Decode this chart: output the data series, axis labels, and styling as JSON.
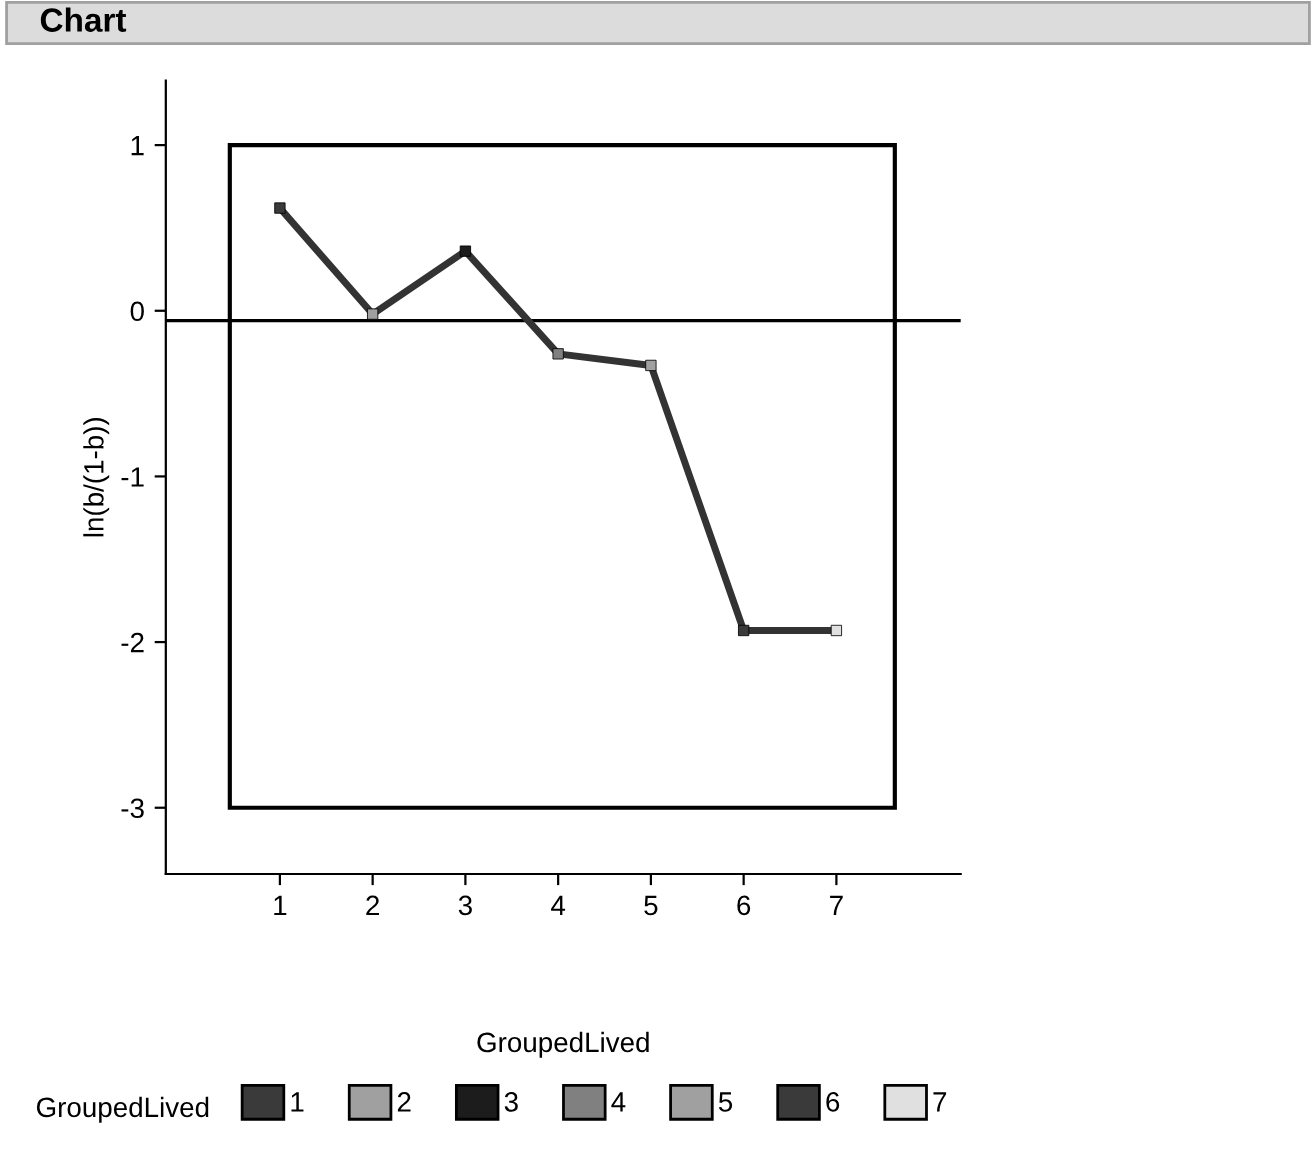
{
  "chart_data": {
    "type": "line",
    "title": "Chart",
    "xlabel": "GroupedLived",
    "ylabel": "ln(b/(1-b))",
    "categories": [
      "1",
      "2",
      "3",
      "4",
      "5",
      "6",
      "7"
    ],
    "series": [
      {
        "color": "#333333",
        "values": [
          0.62,
          -0.02,
          0.36,
          -0.26,
          -0.33,
          -1.93,
          -1.93
        ]
      },
      {
        "type": "scatter",
        "name": "1",
        "marker": "square",
        "color": "#3a3a3a",
        "values": [
          0.62,
          null,
          null,
          null,
          null,
          null,
          null
        ]
      },
      {
        "type": "scatter",
        "name": "2",
        "marker": "square",
        "color": "#a0a0a0",
        "values": [
          null,
          -0.02,
          null,
          null,
          null,
          null,
          null
        ]
      },
      {
        "type": "scatter",
        "name": "3",
        "marker": "square",
        "color": "#1c1c1c",
        "values": [
          null,
          null,
          0.36,
          null,
          null,
          null,
          null
        ]
      },
      {
        "type": "scatter",
        "name": "4",
        "marker": "square",
        "color": "#808080",
        "values": [
          null,
          null,
          null,
          -0.26,
          null,
          null,
          null
        ]
      },
      {
        "type": "scatter",
        "name": "5",
        "marker": "square",
        "color": "#a0a0a0",
        "values": [
          null,
          null,
          null,
          null,
          -0.33,
          null,
          null
        ]
      },
      {
        "type": "scatter",
        "name": "6",
        "marker": "square",
        "color": "#3a3a3a",
        "values": [
          null,
          null,
          null,
          null,
          null,
          -1.93,
          null
        ]
      },
      {
        "type": "scatter",
        "name": "7",
        "marker": "square",
        "color": "#e0e0e0",
        "values": [
          null,
          null,
          null,
          null,
          null,
          null,
          -1.93
        ]
      }
    ],
    "ylim": [
      -3.4,
      1.39
    ],
    "yticks": [
      -3,
      -2,
      -1,
      0,
      1
    ],
    "ref_lines": [
      {
        "axis": "y",
        "value": -0.06,
        "color": "#000000"
      }
    ],
    "legend": "bottom",
    "legend_title": "GroupedLived",
    "grid": false
  }
}
